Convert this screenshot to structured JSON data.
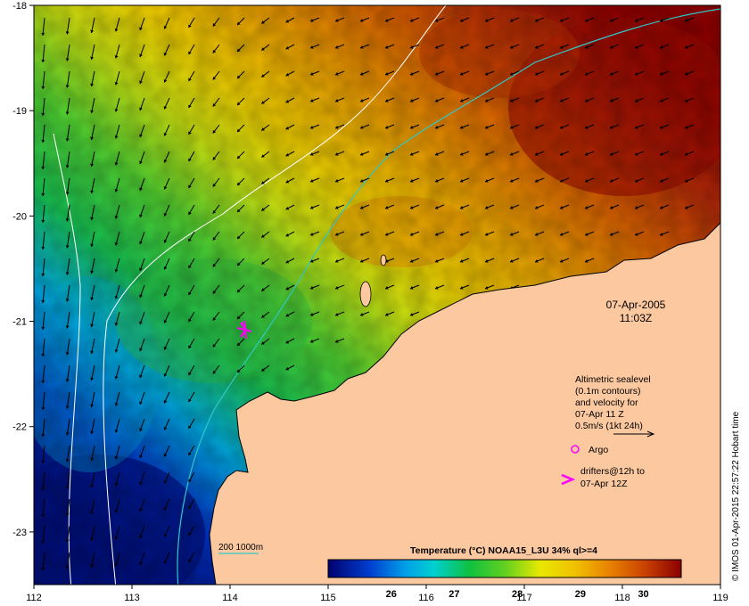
{
  "map": {
    "lon_ticks": [
      "112",
      "113",
      "114",
      "115",
      "116",
      "117",
      "118",
      "119"
    ],
    "lat_ticks": [
      "-18",
      "-19",
      "-20",
      "-21",
      "-22",
      "-23"
    ],
    "lon_range": [
      112,
      119
    ],
    "lat_range": [
      -23.5,
      -18
    ],
    "date": "07-Apr-2005",
    "time": "11:03Z",
    "legend": {
      "line1": "Altimetric sealevel",
      "line2": "(0.1m contours)",
      "line3": "and velocity for",
      "line4": "07-Apr 11 Z",
      "line5": "0.5m/s (1kt 24h)"
    },
    "argo_label": "Argo",
    "drifters_line1": "drifters@12h to",
    "drifters_line2": "07-Apr 12Z",
    "isobath_label": "200  1000m",
    "colorbar": {
      "title": "Temperature (°C) NOAA15_L3U 34% ql>=4",
      "ticks": [
        "26",
        "27",
        "28",
        "29",
        "30"
      ],
      "range": [
        25.0,
        30.6
      ]
    },
    "credit": "© IMOS 01-Apr-2015 22:57:22 Hobart time",
    "colors": {
      "land": "#fbc8a0",
      "drifter": "#ff00ff",
      "isobath_200": "#30c8c8",
      "isobath_1000": "#ffffff",
      "arrow": "#000000"
    }
  }
}
